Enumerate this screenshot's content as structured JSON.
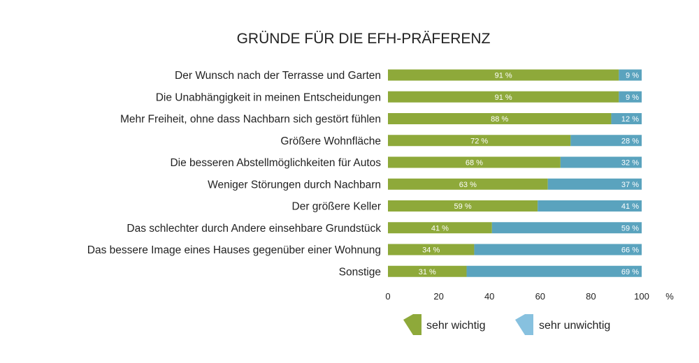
{
  "chart_data": {
    "type": "bar",
    "orientation": "horizontal",
    "stacked": true,
    "title": "GRÜNDE FÜR DIE EFH-PRÄFERENZ",
    "categories": [
      "Der Wunsch nach der Terrasse und Garten",
      "Die Unabhängigkeit in meinen Entscheidungen",
      "Mehr Freiheit, ohne dass Nachbarn sich gestört fühlen",
      "Größere Wohnfläche",
      "Die besseren Abstellmöglichkeiten für Autos",
      "Weniger Störungen durch Nachbarn",
      "Der größere Keller",
      "Das schlechter durch Andere einsehbare Grundstück",
      "Das bessere Image eines Hauses gegenüber einer Wohnung",
      "Sonstige"
    ],
    "series": [
      {
        "name": "sehr wichtig",
        "color": "#8ea93a",
        "values": [
          91,
          91,
          88,
          72,
          68,
          63,
          59,
          41,
          34,
          31
        ]
      },
      {
        "name": "sehr unwichtig",
        "color": "#5aa3be",
        "values": [
          9,
          9,
          12,
          28,
          32,
          37,
          41,
          59,
          66,
          69
        ]
      }
    ],
    "value_suffix": " %",
    "xlim": [
      0,
      100
    ],
    "xticks": [
      0,
      20,
      40,
      60,
      80,
      100
    ],
    "xunit": "%",
    "legend_position": "bottom-right",
    "legend_icon_colors": [
      "#8ea93a",
      "#87c1df"
    ],
    "grid": false
  }
}
